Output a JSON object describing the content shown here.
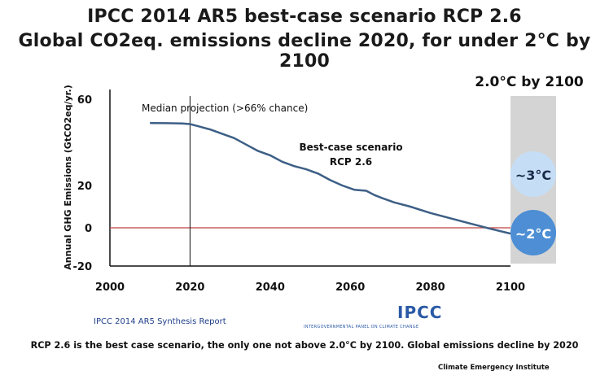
{
  "header": {
    "title_line1": "IPCC 2014 AR5 best-case scenario RCP 2.6",
    "title_line2": "Global CO2eq. emissions decline 2020, for under 2°C by 2100"
  },
  "chart_data": {
    "type": "line",
    "ylabel": "Annual GHG Emissions (GtCO2eq/yr.)",
    "xticks": [
      "2000",
      "2020",
      "2040",
      "2060",
      "2080",
      "2100"
    ],
    "yticks": [
      "60",
      "20",
      "0",
      "-20"
    ],
    "xlim": [
      2000,
      2100
    ],
    "ylim": [
      -20,
      60
    ],
    "series": [
      {
        "name": "Best-case scenario RCP 2.6",
        "x": [
          2010,
          2014,
          2018,
          2020,
          2022,
          2025,
          2028,
          2031,
          2034,
          2037,
          2040,
          2043,
          2046,
          2049,
          2052,
          2055,
          2058,
          2061,
          2064,
          2066,
          2068,
          2071,
          2075,
          2080,
          2085,
          2090,
          2095,
          2100
        ],
        "y": [
          49,
          48.9,
          48.8,
          48.5,
          47.5,
          46,
          44,
          42,
          39,
          36,
          34,
          31,
          29,
          27.5,
          25.5,
          22.5,
          20,
          18,
          17.5,
          15.5,
          14,
          12,
          10,
          7,
          4.5,
          2,
          -0.5,
          -3
        ]
      }
    ],
    "annotations": {
      "median_projection": "Median projection (>66% chance)",
      "median_year": 2020,
      "scenario_line1": "Best-case scenario",
      "scenario_line2": "RCP 2.6",
      "target_label": "2.0°C by 2100",
      "bubble_3c": "~3°C",
      "bubble_2c": "~2°C"
    },
    "colors": {
      "line": "#3d5f86",
      "zero_line": "#c04040",
      "band": "#d4d4d4",
      "bubble_3c": "#c5def5",
      "bubble_2c": "#4d8ed4"
    }
  },
  "footer": {
    "source": "IPCC 2014 AR5 Synthesis Report",
    "logo": "IPCC",
    "logo_subtitle": "INTERGOVERNMENTAL PANEL ON CLIMATE CHANGE",
    "caption": "RCP 2.6 is the best case scenario, the only one not above 2.0°C by 2100. Global emissions decline by 2020",
    "credit": "Climate Emergency Institute"
  }
}
